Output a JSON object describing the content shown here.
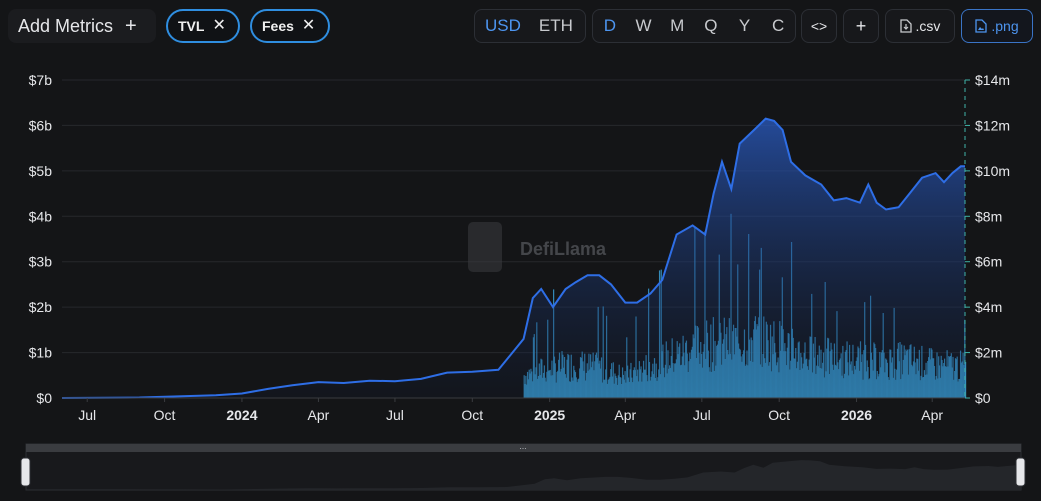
{
  "toolbar": {
    "add_metrics_label": "Add Metrics",
    "add_icon": "+",
    "chips": [
      {
        "label": "TVL",
        "color": "#2f8ee0"
      },
      {
        "label": "Fees",
        "color": "#2f8ee0"
      }
    ],
    "currency": {
      "options": [
        "USD",
        "ETH"
      ],
      "selected": "USD"
    },
    "periods": {
      "options": [
        "D",
        "W",
        "M",
        "Q",
        "Y",
        "C"
      ],
      "selected": "D"
    },
    "embed_icon": "embed-code-icon",
    "add_chart_icon": "plus-icon",
    "csv_label": ".csv",
    "png_label": ".png",
    "accent_color": "#4d95f0"
  },
  "watermark": "DefiLlama",
  "chart_data": {
    "type": "area",
    "xlabels": [
      "Jul",
      "Oct",
      "2024",
      "Apr",
      "Jul",
      "Oct",
      "2025",
      "Apr",
      "Jul",
      "Oct",
      "2026",
      "Apr"
    ],
    "year_labels": [
      "2024",
      "2025",
      "2026"
    ],
    "x_range": [
      "2023-06-01",
      "2026-05-10"
    ],
    "left_axis": {
      "ticks": [
        "$0",
        "$1b",
        "$2b",
        "$3b",
        "$4b",
        "$5b",
        "$6b",
        "$7b"
      ],
      "ylim": [
        0,
        7000000000
      ]
    },
    "right_axis": {
      "ticks": [
        "$0",
        "$2m",
        "$4m",
        "$6m",
        "$8m",
        "$10m",
        "$12m",
        "$14m"
      ],
      "ylim": [
        0,
        14000000
      ]
    },
    "series": [
      {
        "name": "TVL",
        "axis": "left",
        "unit": "USD",
        "color": "#2e6ee6",
        "style": "area",
        "points": [
          [
            "2023-06-01",
            0.0
          ],
          [
            "2023-09-01",
            0.01
          ],
          [
            "2023-12-01",
            0.06
          ],
          [
            "2024-01-01",
            0.1
          ],
          [
            "2024-02-01",
            0.2
          ],
          [
            "2024-03-01",
            0.28
          ],
          [
            "2024-04-01",
            0.35
          ],
          [
            "2024-05-01",
            0.33
          ],
          [
            "2024-06-01",
            0.38
          ],
          [
            "2024-07-01",
            0.37
          ],
          [
            "2024-08-01",
            0.42
          ],
          [
            "2024-09-01",
            0.56
          ],
          [
            "2024-10-01",
            0.58
          ],
          [
            "2024-11-01",
            0.62
          ],
          [
            "2024-12-01",
            1.3
          ],
          [
            "2024-12-12",
            2.2
          ],
          [
            "2024-12-22",
            2.4
          ],
          [
            "2025-01-05",
            2.0
          ],
          [
            "2025-01-20",
            2.4
          ],
          [
            "2025-02-01",
            2.55
          ],
          [
            "2025-02-15",
            2.7
          ],
          [
            "2025-03-01",
            2.7
          ],
          [
            "2025-03-15",
            2.5
          ],
          [
            "2025-04-01",
            2.1
          ],
          [
            "2025-04-15",
            2.1
          ],
          [
            "2025-05-01",
            2.3
          ],
          [
            "2025-05-15",
            2.6
          ],
          [
            "2025-06-01",
            3.6
          ],
          [
            "2025-06-20",
            3.8
          ],
          [
            "2025-07-05",
            3.6
          ],
          [
            "2025-07-15",
            4.5
          ],
          [
            "2025-07-25",
            5.2
          ],
          [
            "2025-08-05",
            4.6
          ],
          [
            "2025-08-15",
            5.6
          ],
          [
            "2025-09-01",
            5.9
          ],
          [
            "2025-09-15",
            6.15
          ],
          [
            "2025-09-25",
            6.1
          ],
          [
            "2025-10-05",
            5.9
          ],
          [
            "2025-10-15",
            5.2
          ],
          [
            "2025-11-01",
            4.9
          ],
          [
            "2025-11-20",
            4.7
          ],
          [
            "2025-12-05",
            4.35
          ],
          [
            "2025-12-20",
            4.4
          ],
          [
            "2026-01-05",
            4.3
          ],
          [
            "2026-01-15",
            4.7
          ],
          [
            "2026-01-25",
            4.3
          ],
          [
            "2026-02-05",
            4.15
          ],
          [
            "2026-02-20",
            4.2
          ],
          [
            "2026-03-05",
            4.5
          ],
          [
            "2026-03-20",
            4.85
          ],
          [
            "2026-04-05",
            4.95
          ],
          [
            "2026-04-15",
            4.75
          ],
          [
            "2026-04-25",
            4.95
          ],
          [
            "2026-05-05",
            5.1
          ],
          [
            "2026-05-10",
            5.1
          ]
        ],
        "value_scale": "billions"
      },
      {
        "name": "Fees",
        "axis": "right",
        "unit": "USD",
        "color": "#3a9fd6",
        "style": "bar",
        "daily_range": [
          "2024-12-01",
          "2026-05-10"
        ],
        "envelope": [
          [
            "2024-12-01",
            1.4
          ],
          [
            "2025-01-01",
            1.8
          ],
          [
            "2025-02-01",
            2.0
          ],
          [
            "2025-03-01",
            1.8
          ],
          [
            "2025-04-01",
            1.3
          ],
          [
            "2025-05-01",
            2.0
          ],
          [
            "2025-06-01",
            2.6
          ],
          [
            "2025-07-01",
            3.2
          ],
          [
            "2025-08-01",
            3.3
          ],
          [
            "2025-09-01",
            3.6
          ],
          [
            "2025-10-01",
            3.2
          ],
          [
            "2025-11-01",
            2.6
          ],
          [
            "2025-12-01",
            2.4
          ],
          [
            "2026-01-01",
            2.3
          ],
          [
            "2026-02-01",
            2.2
          ],
          [
            "2026-03-01",
            2.3
          ],
          [
            "2026-04-01",
            2.0
          ],
          [
            "2026-05-10",
            1.9
          ]
        ],
        "value_scale": "millions"
      }
    ]
  }
}
